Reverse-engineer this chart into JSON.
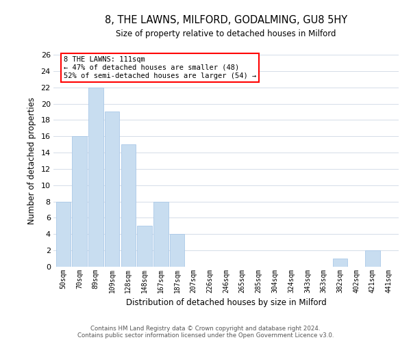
{
  "title": "8, THE LAWNS, MILFORD, GODALMING, GU8 5HY",
  "subtitle": "Size of property relative to detached houses in Milford",
  "xlabel": "Distribution of detached houses by size in Milford",
  "ylabel": "Number of detached properties",
  "bar_color": "#c8ddf0",
  "bar_edge_color": "#aac8e8",
  "categories": [
    "50sqm",
    "70sqm",
    "89sqm",
    "109sqm",
    "128sqm",
    "148sqm",
    "167sqm",
    "187sqm",
    "207sqm",
    "226sqm",
    "246sqm",
    "265sqm",
    "285sqm",
    "304sqm",
    "324sqm",
    "343sqm",
    "363sqm",
    "382sqm",
    "402sqm",
    "421sqm",
    "441sqm"
  ],
  "values": [
    8,
    16,
    22,
    19,
    15,
    5,
    8,
    4,
    0,
    0,
    0,
    0,
    0,
    0,
    0,
    0,
    0,
    1,
    0,
    2,
    0
  ],
  "ylim": [
    0,
    26
  ],
  "yticks": [
    0,
    2,
    4,
    6,
    8,
    10,
    12,
    14,
    16,
    18,
    20,
    22,
    24,
    26
  ],
  "annotation_box_text": "8 THE LAWNS: 111sqm\n← 47% of detached houses are smaller (48)\n52% of semi-detached houses are larger (54) →",
  "footer_line1": "Contains HM Land Registry data © Crown copyright and database right 2024.",
  "footer_line2": "Contains public sector information licensed under the Open Government Licence v3.0.",
  "background_color": "#ffffff",
  "grid_color": "#d4dce8"
}
